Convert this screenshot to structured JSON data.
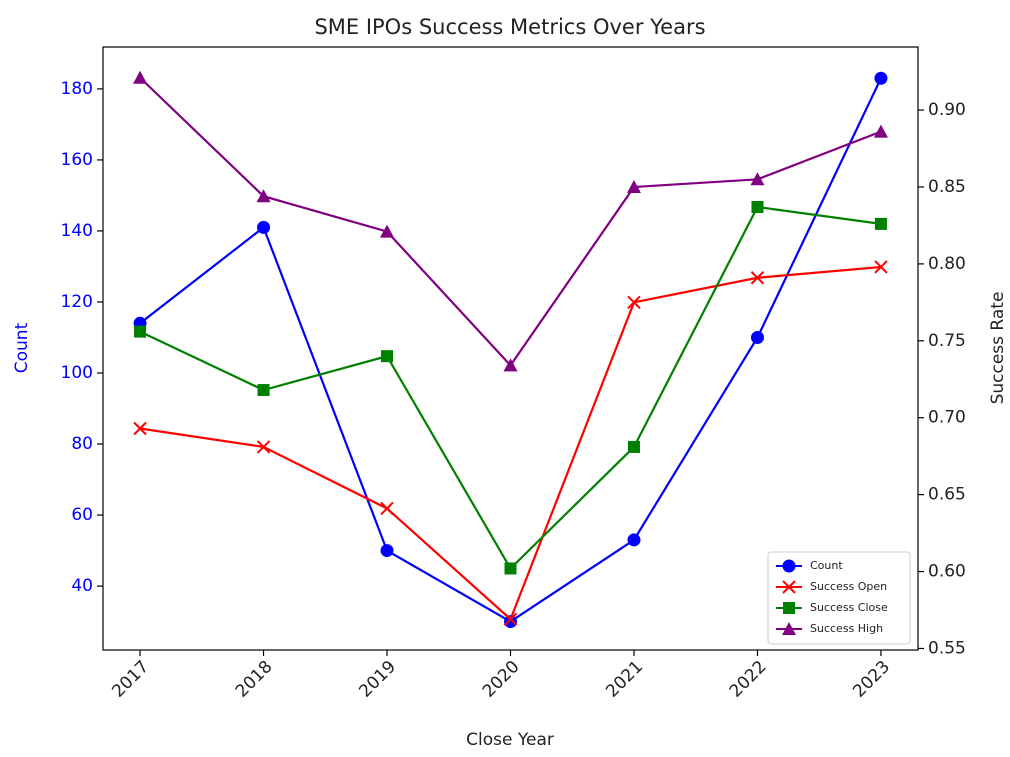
{
  "chart_data": {
    "type": "line",
    "title": "SME IPOs Success Metrics Over Years",
    "x_label": "Close Year",
    "y_label": "Count",
    "y2_label": "Success Rate",
    "x": [
      2017,
      2018,
      2019,
      2020,
      2021,
      2022,
      2023
    ],
    "xlim": [
      2016.7,
      2023.3
    ],
    "xticks": [
      2017,
      2018,
      2019,
      2020,
      2021,
      2022,
      2023
    ],
    "ylim": [
      22,
      191.8
    ],
    "yticks": [
      40,
      60,
      80,
      100,
      120,
      140,
      160,
      180
    ],
    "y2lim": [
      0.549,
      0.941
    ],
    "y2ticks": [
      {
        "value": 0.55,
        "label": "0.55"
      },
      {
        "value": 0.6,
        "label": "0.60"
      },
      {
        "value": 0.65,
        "label": "0.65"
      },
      {
        "value": 0.7,
        "label": "0.70"
      },
      {
        "value": 0.75,
        "label": "0.75"
      },
      {
        "value": 0.8,
        "label": "0.80"
      },
      {
        "value": 0.85,
        "label": "0.85"
      },
      {
        "value": 0.9,
        "label": "0.90"
      }
    ],
    "legend": "lower right",
    "series": [
      {
        "name": "Count",
        "color": "#0000ff",
        "marker": "circle",
        "values": [
          114,
          141,
          50,
          30,
          53,
          110,
          183
        ]
      },
      {
        "name": "Success Open",
        "color": "#ff0000",
        "marker": "x",
        "axis": "y2",
        "values": [
          0.693,
          0.681,
          0.641,
          0.569,
          0.775,
          0.791,
          0.798
        ]
      },
      {
        "name": "Success Close",
        "color": "#008000",
        "marker": "square",
        "axis": "y2",
        "values": [
          0.756,
          0.718,
          0.74,
          0.602,
          0.681,
          0.837,
          0.826
        ]
      },
      {
        "name": "Success High",
        "color": "#800080",
        "marker": "triangle",
        "axis": "y2",
        "values": [
          0.921,
          0.844,
          0.821,
          0.734,
          0.85,
          0.855,
          0.886
        ]
      }
    ]
  }
}
